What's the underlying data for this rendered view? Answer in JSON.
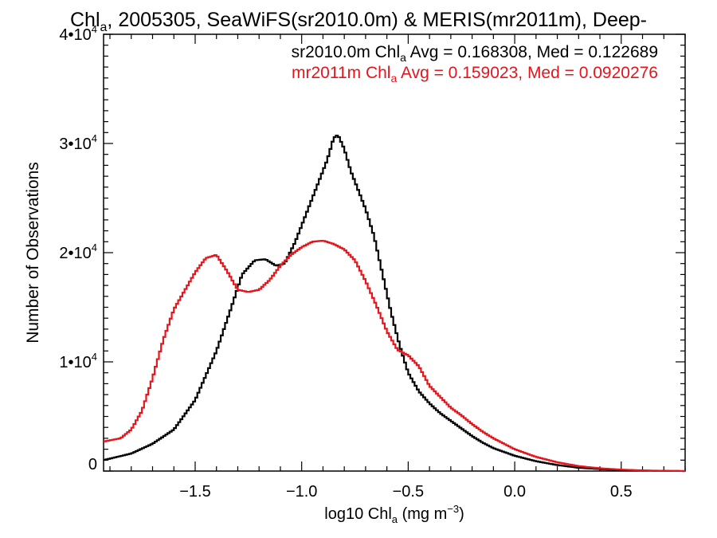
{
  "title": {
    "prefix": "Chl",
    "sub": "a",
    "rest": ", 2005305, SeaWiFS(sr2010.0m) & MERIS(mr2011m), Deep-"
  },
  "legend": [
    {
      "pre": "sr2010.0m Chl",
      "sub": "a",
      "post": " Avg = 0.168308, Med = 0.122689",
      "color": "#000000"
    },
    {
      "pre": "mr2011m Chl",
      "sub": "a",
      "post": " Avg = 0.159023, Med = 0.0920276",
      "color": "#e8141c"
    }
  ],
  "xlabel": {
    "pre": "log10 Chl",
    "sub": "a",
    "mid": " (mg m",
    "sup": "−3",
    "post": ")"
  },
  "ylabel": "Number of Observations",
  "chart_data": {
    "type": "line",
    "step": true,
    "xlim": [
      -1.93,
      0.8
    ],
    "ylim": [
      0,
      40000
    ],
    "xticks": [
      {
        "value": -1.5,
        "label": "−1.5"
      },
      {
        "value": -1.0,
        "label": "−1.0"
      },
      {
        "value": -0.5,
        "label": "−0.5"
      },
      {
        "value": 0.0,
        "label": "0.0"
      },
      {
        "value": 0.5,
        "label": "0.5"
      }
    ],
    "yticks": [
      {
        "value": 0,
        "base": "0",
        "exp": ""
      },
      {
        "value": 10000,
        "base": "1•10",
        "exp": "4"
      },
      {
        "value": 20000,
        "base": "2•10",
        "exp": "4"
      },
      {
        "value": 30000,
        "base": "3•10",
        "exp": "4"
      },
      {
        "value": 40000,
        "base": "4•10",
        "exp": "4"
      }
    ],
    "series": [
      {
        "color": "#000000",
        "x": [
          -1.93,
          -1.8,
          -1.7,
          -1.6,
          -1.5,
          -1.4,
          -1.33,
          -1.28,
          -1.22,
          -1.17,
          -1.12,
          -1.08,
          -1.03,
          -0.98,
          -0.93,
          -0.88,
          -0.85,
          -0.83,
          -0.8,
          -0.77,
          -0.73,
          -0.7,
          -0.66,
          -0.62,
          -0.58,
          -0.54,
          -0.5,
          -0.45,
          -0.4,
          -0.35,
          -0.3,
          -0.25,
          -0.2,
          -0.15,
          -0.1,
          0.0,
          0.1,
          0.2,
          0.3,
          0.4,
          0.5,
          0.6,
          0.7,
          0.8
        ],
        "y": [
          1000,
          1600,
          2500,
          3800,
          6500,
          11000,
          15000,
          18000,
          19300,
          19400,
          18800,
          19000,
          21000,
          23500,
          26000,
          28500,
          30500,
          30800,
          29500,
          27500,
          25500,
          24000,
          21500,
          18000,
          14500,
          11500,
          9000,
          7300,
          6200,
          5300,
          4600,
          3900,
          3200,
          2600,
          2100,
          1400,
          900,
          550,
          300,
          180,
          90,
          40,
          20,
          0
        ]
      },
      {
        "color": "#e8141c",
        "x": [
          -1.93,
          -1.85,
          -1.8,
          -1.75,
          -1.7,
          -1.65,
          -1.6,
          -1.55,
          -1.5,
          -1.45,
          -1.4,
          -1.35,
          -1.3,
          -1.25,
          -1.2,
          -1.15,
          -1.1,
          -1.05,
          -1.0,
          -0.95,
          -0.9,
          -0.85,
          -0.8,
          -0.75,
          -0.7,
          -0.65,
          -0.6,
          -0.55,
          -0.5,
          -0.45,
          -0.4,
          -0.35,
          -0.3,
          -0.25,
          -0.2,
          -0.15,
          -0.1,
          0.0,
          0.1,
          0.2,
          0.3,
          0.4,
          0.5,
          0.6,
          0.7,
          0.8
        ],
        "y": [
          2700,
          3000,
          3800,
          5500,
          8500,
          12000,
          14800,
          16500,
          18200,
          19500,
          19800,
          18300,
          16600,
          16400,
          16600,
          17500,
          18800,
          19800,
          20500,
          21000,
          21100,
          20800,
          20300,
          19300,
          17400,
          15200,
          12800,
          11100,
          10600,
          9600,
          7800,
          6800,
          5800,
          5100,
          4300,
          3600,
          3000,
          2000,
          1300,
          800,
          450,
          250,
          130,
          60,
          20,
          0
        ]
      }
    ]
  }
}
